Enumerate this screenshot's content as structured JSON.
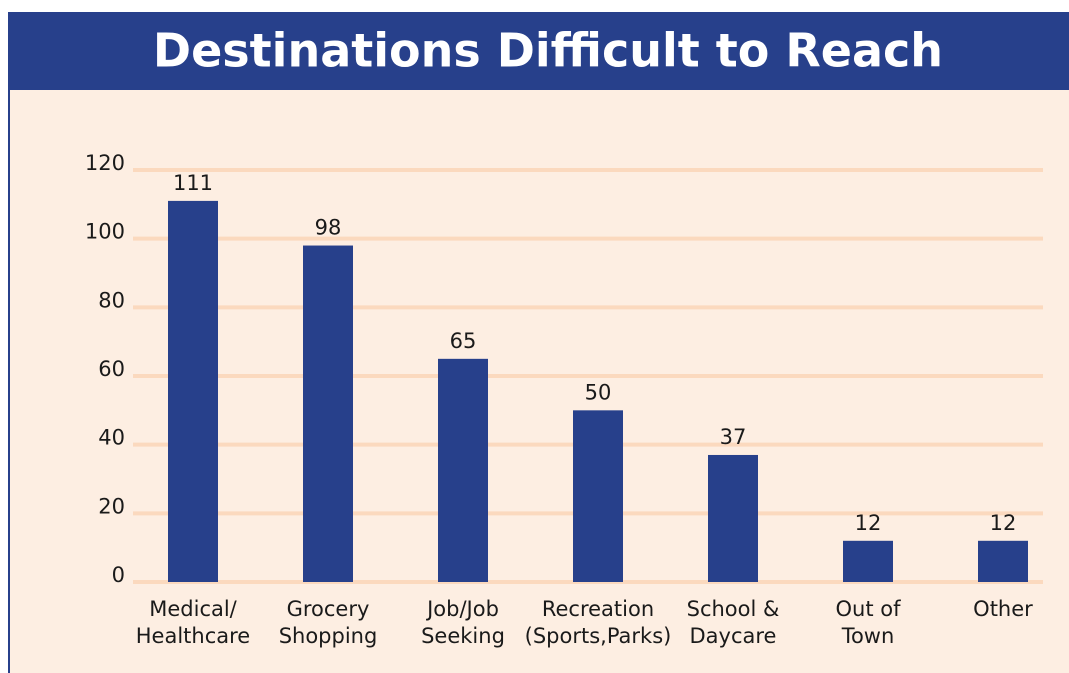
{
  "chart_data": {
    "type": "bar",
    "title": "Destinations Difficult to Reach",
    "categories": [
      "Medical/\nHealthcare",
      "Grocery\nShopping",
      "Job/Job\nSeeking",
      "Recreation\n(Sports,Parks)",
      "School &\nDaycare",
      "Out of\nTown",
      "Other"
    ],
    "values": [
      111,
      98,
      65,
      50,
      37,
      12,
      12
    ],
    "color": "#27408b",
    "ylim": [
      0,
      120
    ],
    "yticks": [
      0,
      20,
      40,
      60,
      80,
      100,
      120
    ],
    "grid": true
  }
}
